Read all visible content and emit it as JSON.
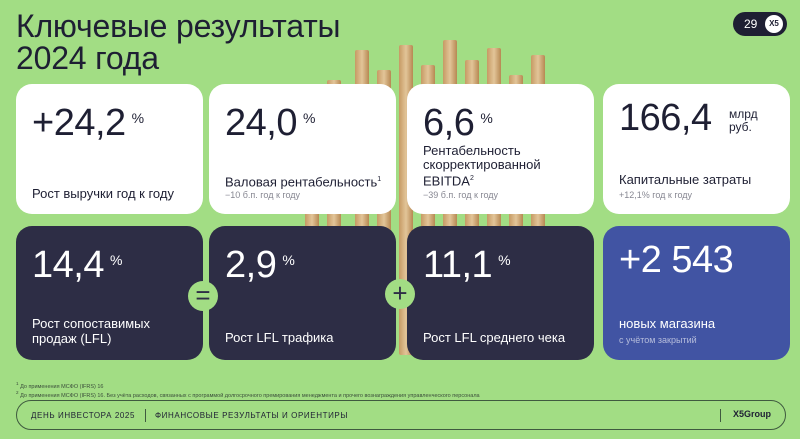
{
  "header": {
    "title_line1": "Ключевые результаты",
    "title_line2": "2024 года",
    "page_number": "29",
    "page_logo": "X5"
  },
  "cards": {
    "revenue": {
      "value": "+24,2",
      "unit": "%",
      "label": "Рост выручки год к году"
    },
    "gross": {
      "value": "24,0",
      "unit": "%",
      "label": "Валовая рентабельность",
      "sup": "1",
      "sub": "−10 б.п. год к году"
    },
    "ebitda": {
      "value": "6,6",
      "unit": "%",
      "label_line1": "Рентабельность",
      "label_line2": "скорректированной",
      "label_line3": "EBITDA",
      "sup": "2",
      "sub": "−39 б.п. год к году"
    },
    "capex": {
      "value": "166,4",
      "unit_line1": "млрд",
      "unit_line2": "руб.",
      "label": "Капитальные затраты",
      "sub": "+12,1% год к году"
    },
    "lfl": {
      "value": "14,4",
      "unit": "%",
      "label_line1": "Рост сопоставимых",
      "label_line2": "продаж (LFL)"
    },
    "traffic": {
      "value": "2,9",
      "unit": "%",
      "label": "Рост LFL трафика"
    },
    "ticket": {
      "value": "11,1",
      "unit": "%",
      "label": "Рост LFL среднего чека"
    },
    "stores": {
      "value": "+2 543",
      "label": "новых магазина",
      "sub": "с учётом закрытий"
    }
  },
  "operators": {
    "equals": "=",
    "plus": "+"
  },
  "footnotes": {
    "f1_num": "1",
    "f1": "До применения МСФО (IFRS) 16",
    "f2_num": "2",
    "f2": "До применения МСФО (IFRS) 16. Без учёта расходов, связанных с программой долгосрочного премирования менеджмента и прочего вознаграждения управленческого персонала"
  },
  "footer": {
    "event": "ДЕНЬ ИНВЕСТОРА 2025",
    "section": "ФИНАНСОВЫЕ РЕЗУЛЬТАТЫ И ОРИЕНТИРЫ",
    "logo": "X5Group"
  },
  "colors": {
    "background": "#a2dd84",
    "dark_card": "#2d2d45",
    "blue_card": "#4154a3",
    "ink": "#1e1f33"
  }
}
